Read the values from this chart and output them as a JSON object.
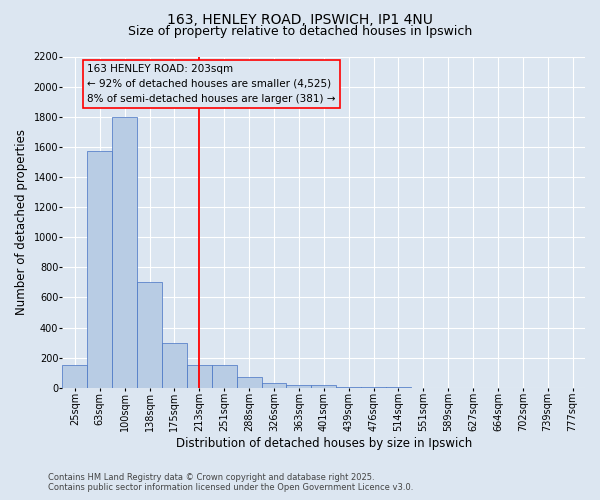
{
  "title_line1": "163, HENLEY ROAD, IPSWICH, IP1 4NU",
  "title_line2": "Size of property relative to detached houses in Ipswich",
  "xlabel": "Distribution of detached houses by size in Ipswich",
  "ylabel": "Number of detached properties",
  "categories": [
    "25sqm",
    "63sqm",
    "100sqm",
    "138sqm",
    "175sqm",
    "213sqm",
    "251sqm",
    "288sqm",
    "326sqm",
    "363sqm",
    "401sqm",
    "439sqm",
    "476sqm",
    "514sqm",
    "551sqm",
    "589sqm",
    "627sqm",
    "664sqm",
    "702sqm",
    "739sqm",
    "777sqm"
  ],
  "values": [
    150,
    1575,
    1800,
    700,
    300,
    150,
    150,
    70,
    30,
    20,
    20,
    5,
    5,
    2,
    1,
    1,
    0,
    0,
    0,
    0,
    0
  ],
  "bar_color": "#b8cce4",
  "bar_edge_color": "#4472c4",
  "background_color": "#dce6f1",
  "ylim": [
    0,
    2200
  ],
  "yticks": [
    0,
    200,
    400,
    600,
    800,
    1000,
    1200,
    1400,
    1600,
    1800,
    2000,
    2200
  ],
  "property_label": "163 HENLEY ROAD: 203sqm",
  "annotation_line1": "← 92% of detached houses are smaller (4,525)",
  "annotation_line2": "8% of semi-detached houses are larger (381) →",
  "vline_x": 5.0,
  "footer_line1": "Contains HM Land Registry data © Crown copyright and database right 2025.",
  "footer_line2": "Contains public sector information licensed under the Open Government Licence v3.0.",
  "grid_color": "#ffffff",
  "title_fontsize": 10,
  "subtitle_fontsize": 9,
  "tick_fontsize": 7,
  "label_fontsize": 8.5,
  "footer_fontsize": 6,
  "annotation_fontsize": 7.5
}
